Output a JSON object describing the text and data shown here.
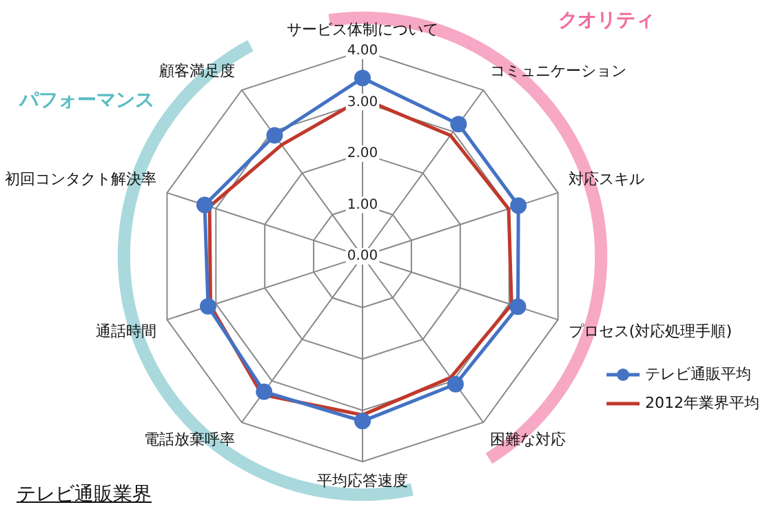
{
  "chart_data": {
    "type": "radar",
    "title": "テレビ通販業界",
    "categories": [
      "サービス体制について",
      "コミュニケーション",
      "対応スキル",
      "プロセス(対応処理手順)",
      "困難な対応",
      "平均応答速度",
      "電話放棄呼率",
      "通話時間",
      "初回コンタクト解決率",
      "顧客満足度"
    ],
    "series": [
      {
        "name": "テレビ通販平均",
        "color": "#4472c4",
        "marker": "circle",
        "values": [
          3.47,
          3.18,
          3.19,
          3.18,
          3.08,
          3.21,
          3.26,
          3.16,
          3.23,
          2.91
        ]
      },
      {
        "name": "2012年業界平均",
        "color": "#c0392b",
        "marker": "none",
        "values": [
          3.07,
          2.91,
          2.99,
          3.05,
          2.92,
          3.09,
          3.33,
          3.11,
          3.13,
          2.68
        ]
      }
    ],
    "ylim": [
      0,
      4
    ],
    "yticks": [
      {
        "value": 0,
        "label": "0.00"
      },
      {
        "value": 1,
        "label": "1.00"
      },
      {
        "value": 2,
        "label": "2.00"
      },
      {
        "value": 3,
        "label": "3.00"
      },
      {
        "value": 4,
        "label": "4.00"
      }
    ],
    "grid": true,
    "legend": "bottom right",
    "annotations": [
      "クオリティ",
      "パフォーマンス"
    ]
  }
}
